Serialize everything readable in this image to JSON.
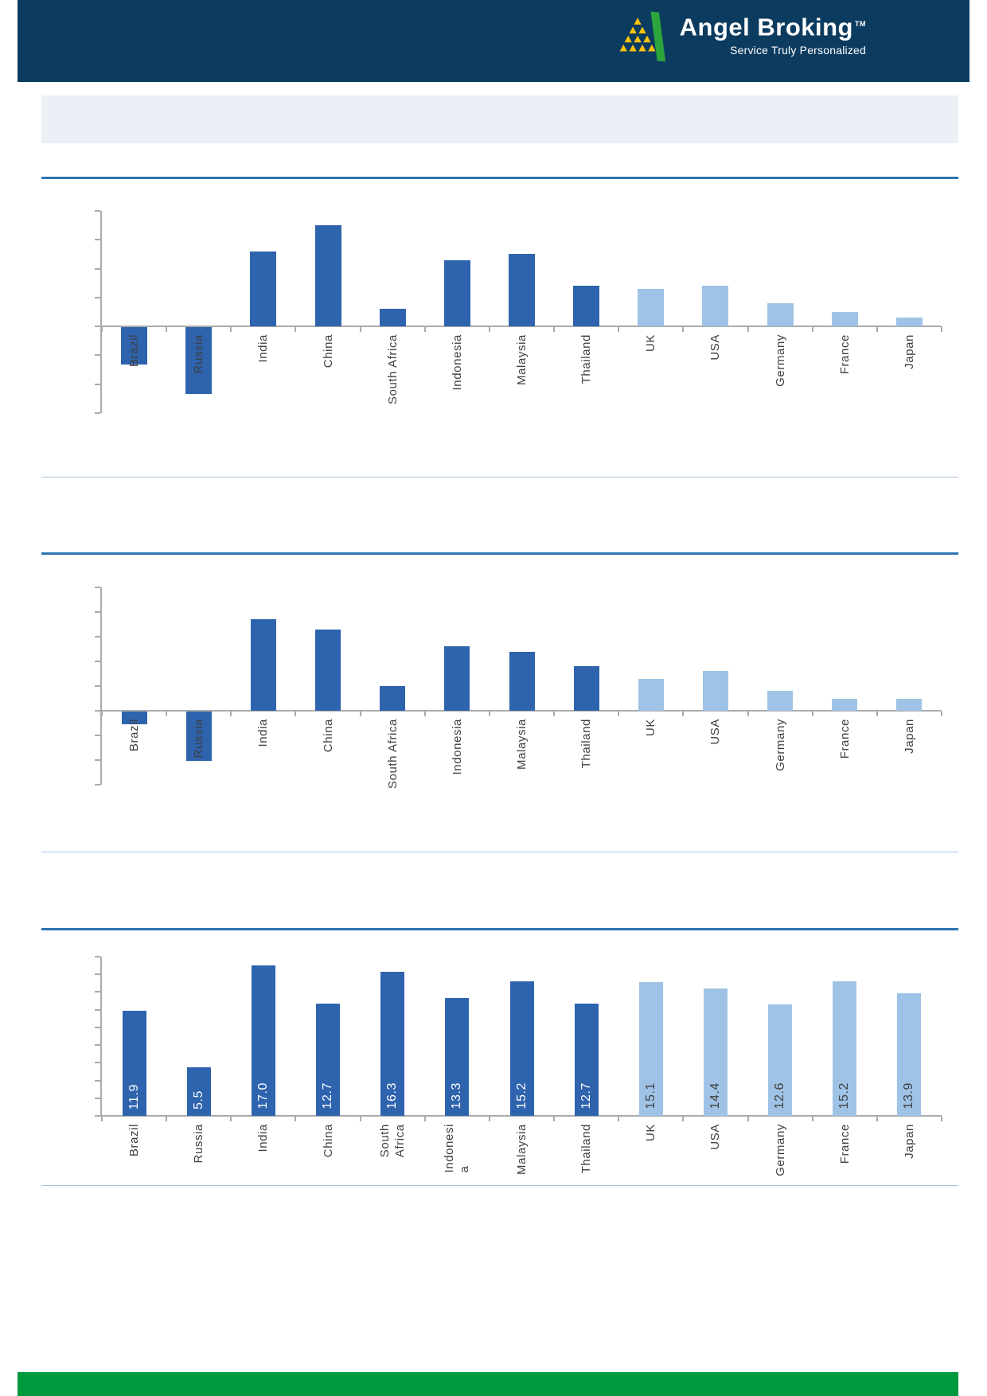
{
  "header": {
    "brand": "Angel Broking",
    "trademark": "TM",
    "tagline": "Service Truly Personalized"
  },
  "colors": {
    "header_navy": "#0C3B60",
    "logo_green": "#2BA53C",
    "logo_yellow": "#FFC20E",
    "emerging_bar_dark_blue": "#2E63AE",
    "developed_bar_light_blue": "#9FC3E6",
    "axis_gray": "#ABABAB",
    "separator_thick_blue": "#2E74B5",
    "separator_thin_blue": "#A8C4DE",
    "title_box_bg": "#EAF0F6",
    "footer_green": "#009A3E",
    "label_text": "#3F3F3F",
    "value_label_on_dark": "#FFFFFF",
    "value_label_on_light": "#404040"
  },
  "chart_data": [
    {
      "type": "bar",
      "categories": [
        "Brazil",
        "Russia",
        "India",
        "China",
        "South Africa",
        "Indonesia",
        "Malaysia",
        "Thailand",
        "UK",
        "USA",
        "Germany",
        "France",
        "Japan"
      ],
      "display_labels": [
        "Brazil",
        "Russia",
        "India",
        "China",
        "South Africa",
        "Indonesia",
        "Malaysia",
        "Thailand",
        "UK",
        "USA",
        "Germany",
        "France",
        "Japan"
      ],
      "values": [
        -1.3,
        -2.3,
        2.6,
        3.5,
        0.6,
        2.3,
        2.5,
        1.4,
        1.3,
        1.4,
        0.8,
        0.5,
        0.3
      ],
      "value_labels": [],
      "title": "",
      "xlabel": "",
      "ylabel": "",
      "ylim": [
        -3,
        4
      ],
      "tick_interval": 1,
      "grid": false,
      "legend": "none",
      "axis_tick_labels_visible": false,
      "note": "y-axis tick labels are not visible in the image; values estimated in gridline units",
      "dark_count": 8
    },
    {
      "type": "bar",
      "categories": [
        "Brazil",
        "Russia",
        "India",
        "China",
        "South Africa",
        "Indonesia",
        "Malaysia",
        "Thailand",
        "UK",
        "USA",
        "Germany",
        "France",
        "Japan"
      ],
      "display_labels": [
        "Brazil",
        "Russia",
        "India",
        "China",
        "South Africa",
        "Indonesia",
        "Malaysia",
        "Thailand",
        "UK",
        "USA",
        "Germany",
        "France",
        "Japan"
      ],
      "values": [
        -0.5,
        -2.0,
        3.7,
        3.3,
        1.0,
        2.6,
        2.4,
        1.8,
        1.3,
        1.6,
        0.8,
        0.5,
        0.5
      ],
      "value_labels": [],
      "title": "",
      "xlabel": "",
      "ylabel": "",
      "ylim": [
        -3,
        5
      ],
      "tick_interval": 1,
      "grid": false,
      "legend": "none",
      "axis_tick_labels_visible": false,
      "note": "y-axis tick labels are not visible in the image; values estimated in gridline units",
      "dark_count": 8
    },
    {
      "type": "bar",
      "categories": [
        "Brazil",
        "Russia",
        "India",
        "China",
        "South Africa",
        "Indonesia",
        "Malaysia",
        "Thailand",
        "UK",
        "USA",
        "Germany",
        "France",
        "Japan"
      ],
      "display_labels": [
        "Brazil",
        "Russia",
        "India",
        "China",
        "South\nAfrica",
        "Indonesi\na",
        "Malaysia",
        "Thailand",
        "UK",
        "USA",
        "Germany",
        "France",
        "Japan"
      ],
      "values": [
        11.9,
        5.5,
        17.0,
        12.7,
        16.3,
        13.3,
        15.2,
        12.7,
        15.1,
        14.4,
        12.6,
        15.2,
        13.9
      ],
      "value_labels": [
        "11.9",
        "5.5",
        "17.0",
        "12.7",
        "16.3",
        "13.3",
        "15.2",
        "12.7",
        "15.1",
        "14.4",
        "12.6",
        "15.2",
        "13.9"
      ],
      "title": "",
      "xlabel": "",
      "ylabel": "",
      "ylim": [
        0,
        18
      ],
      "tick_interval": 2,
      "grid": false,
      "legend": "none",
      "axis_tick_labels_visible": false,
      "dark_count": 8
    }
  ]
}
